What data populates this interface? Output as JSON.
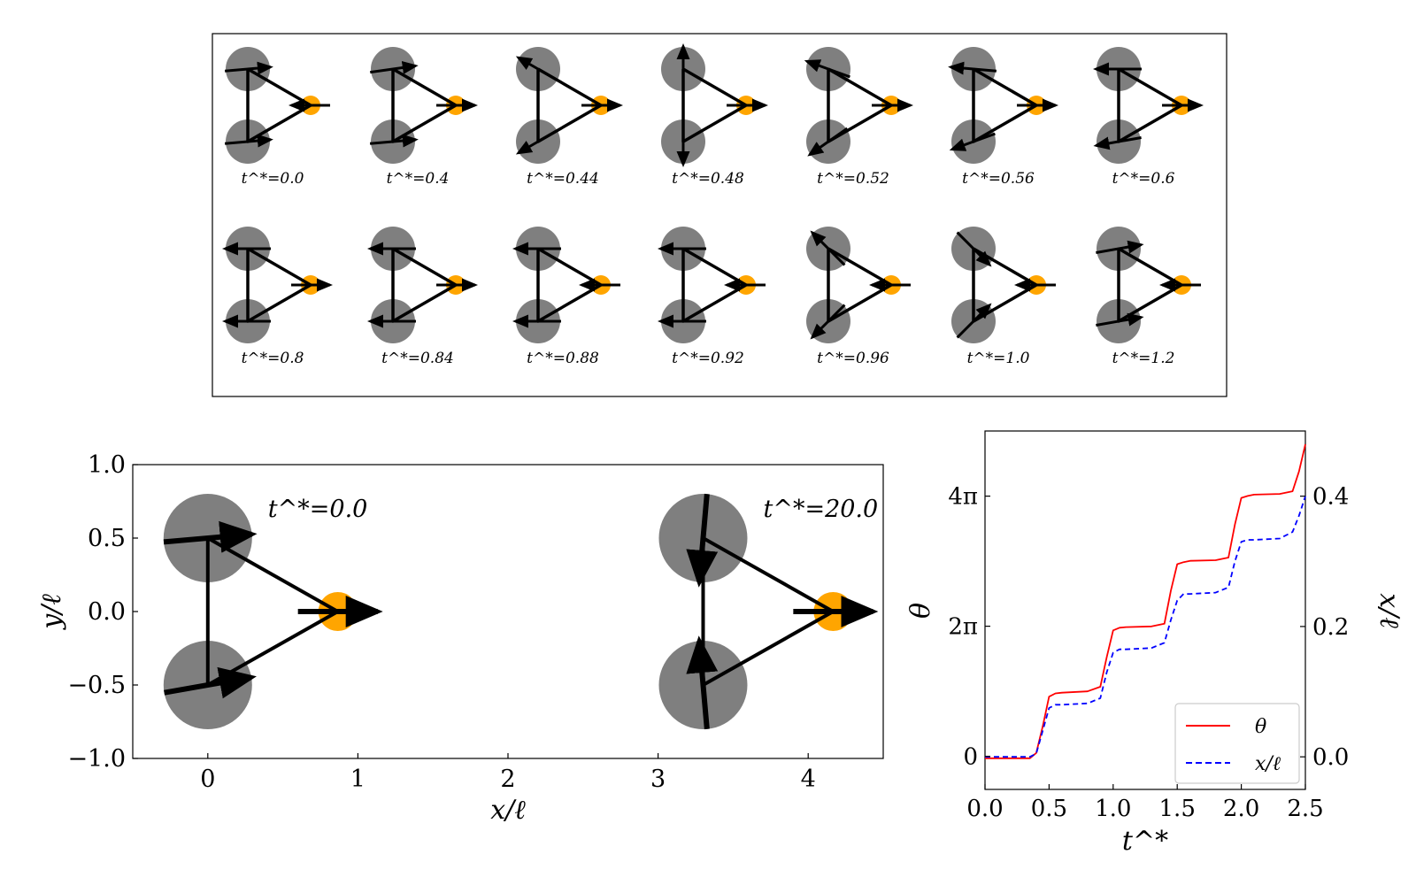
{
  "snapshot_panel": {
    "frames": [
      {
        "label": "t^*=0.0",
        "top_angle": 5,
        "bottom_angle": 5,
        "front_angle": 180
      },
      {
        "label": "t^*=0.4",
        "top_angle": 8,
        "bottom_angle": 5,
        "front_angle": 0
      },
      {
        "label": "t^*=0.44",
        "top_angle": 150,
        "bottom_angle": 210,
        "front_angle": 0
      },
      {
        "label": "t^*=0.48",
        "top_angle": 90,
        "bottom_angle": 270,
        "front_angle": 0
      },
      {
        "label": "t^*=0.52",
        "top_angle": 160,
        "bottom_angle": 215,
        "front_angle": 0
      },
      {
        "label": "t^*=0.56",
        "top_angle": 175,
        "bottom_angle": 200,
        "front_angle": 0
      },
      {
        "label": "t^*=0.6",
        "top_angle": 180,
        "bottom_angle": 190,
        "front_angle": 0
      },
      {
        "label": "t^*=0.8",
        "top_angle": 180,
        "bottom_angle": 180,
        "front_angle": 0
      },
      {
        "label": "t^*=0.84",
        "top_angle": 180,
        "bottom_angle": 180,
        "front_angle": 0
      },
      {
        "label": "t^*=0.88",
        "top_angle": 180,
        "bottom_angle": 180,
        "front_angle": 180
      },
      {
        "label": "t^*=0.92",
        "top_angle": 180,
        "bottom_angle": 180,
        "front_angle": 180
      },
      {
        "label": "t^*=0.96",
        "top_angle": 135,
        "bottom_angle": 225,
        "front_angle": 180
      },
      {
        "label": "t^*=1.0",
        "top_angle": 315,
        "bottom_angle": 45,
        "front_angle": 180
      },
      {
        "label": "t^*=1.2",
        "top_angle": 10,
        "bottom_angle": 10,
        "front_angle": 180
      }
    ]
  },
  "chart_data": [
    {
      "type": "scatter",
      "title": "",
      "xlabel": "x/ℓ",
      "ylabel": "y/ℓ",
      "xlim": [
        -0.5,
        4.5
      ],
      "ylim": [
        -1.0,
        1.0
      ],
      "xticks": [
        "0",
        "1",
        "2",
        "3",
        "4"
      ],
      "yticks": [
        "1.0",
        "0.5",
        "0.0",
        "−0.5",
        "−1.0"
      ],
      "annotations": [
        "t^*=0.0",
        "t^*=20.0"
      ],
      "swimmers": [
        {
          "label": "t^*=0.0",
          "spheres": [
            [
              0,
              0.5
            ],
            [
              0,
              -0.5
            ],
            [
              0.866,
              0
            ]
          ],
          "arrow_angles": [
            5,
            10,
            0
          ]
        },
        {
          "label": "t^*=20.0",
          "spheres": [
            [
              3.3,
              0.5
            ],
            [
              3.3,
              -0.5
            ],
            [
              4.166,
              0
            ]
          ],
          "arrow_angles": [
            265,
            95,
            0
          ]
        }
      ]
    },
    {
      "type": "line",
      "title": "",
      "xlabel": "t^*",
      "ylabel": "θ",
      "ylabel_right": "x/ℓ",
      "xlim": [
        0.0,
        2.5
      ],
      "ylim_left": [
        -0.5,
        4.91
      ],
      "ylim_right": [
        -0.05,
        0.5
      ],
      "xticks": [
        "0.0",
        "0.5",
        "1.0",
        "1.5",
        "2.0",
        "2.5"
      ],
      "yticks_left": [
        "0",
        "2π",
        "4π"
      ],
      "yticks_right": [
        "0.0",
        "0.2",
        "0.4"
      ],
      "legend": {
        "position": "lower-right",
        "entries": [
          "θ",
          "x/ℓ"
        ]
      },
      "series": [
        {
          "name": "θ",
          "axis": "left",
          "color": "#ff0000",
          "style": "solid",
          "x": [
            0.0,
            0.35,
            0.4,
            0.45,
            0.5,
            0.55,
            0.6,
            0.8,
            0.9,
            0.95,
            1.0,
            1.05,
            1.1,
            1.3,
            1.4,
            1.45,
            1.5,
            1.55,
            1.6,
            1.8,
            1.9,
            1.95,
            2.0,
            2.05,
            2.1,
            2.3,
            2.4,
            2.45,
            2.5
          ],
          "y": [
            -0.03,
            -0.03,
            0.05,
            0.45,
            0.9,
            0.95,
            0.96,
            0.98,
            1.05,
            1.5,
            1.9,
            1.94,
            1.95,
            1.96,
            2.0,
            2.5,
            2.9,
            2.93,
            2.95,
            2.96,
            3.0,
            3.5,
            3.9,
            3.93,
            3.95,
            3.96,
            4.0,
            4.3,
            4.71
          ]
        },
        {
          "name": "x/ℓ",
          "axis": "right",
          "color": "#0000ff",
          "style": "dashed",
          "x": [
            0.0,
            0.35,
            0.4,
            0.45,
            0.5,
            0.55,
            0.6,
            0.8,
            0.9,
            0.95,
            1.0,
            1.05,
            1.1,
            1.3,
            1.4,
            1.45,
            1.5,
            1.55,
            1.6,
            1.8,
            1.9,
            1.95,
            2.0,
            2.05,
            2.1,
            2.3,
            2.4,
            2.45,
            2.5
          ],
          "y": [
            0.0,
            0.0,
            0.005,
            0.04,
            0.075,
            0.08,
            0.08,
            0.082,
            0.09,
            0.13,
            0.16,
            0.165,
            0.165,
            0.167,
            0.175,
            0.21,
            0.24,
            0.25,
            0.25,
            0.252,
            0.26,
            0.3,
            0.33,
            0.333,
            0.333,
            0.335,
            0.345,
            0.37,
            0.4
          ]
        }
      ]
    }
  ]
}
